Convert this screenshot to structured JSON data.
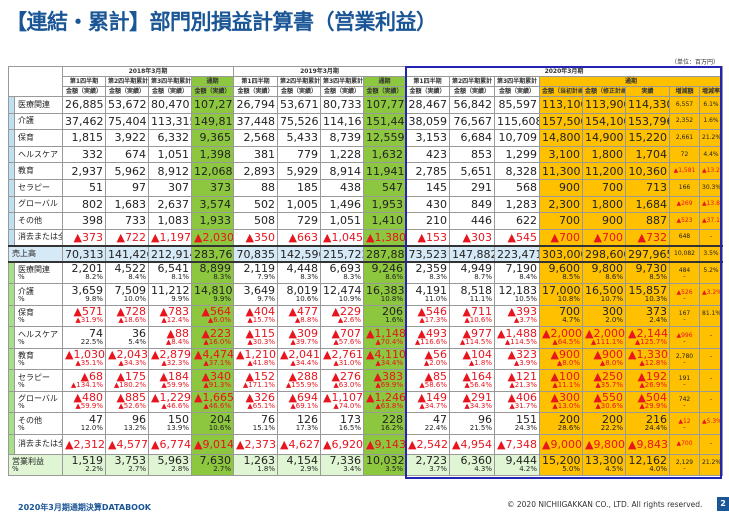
{
  "title": "【連結・累計】部門別損益計算書（営業利益）",
  "unit": "（単位：百万円）",
  "headers": {
    "years": [
      "2018年3月期",
      "2019年3月期",
      "2020年3月期"
    ],
    "periods": [
      "第1四半期",
      "第2四半期累計",
      "第3四半期累計",
      "通期"
    ],
    "amount": "金額（実績）",
    "plan_cols": [
      "金額（当初計画）",
      "金額（修正計画）",
      "実績",
      "増減額",
      "増減率"
    ]
  },
  "colors": {
    "title": "#1a5596",
    "full_year": "#8dc63f",
    "fy2020": "#ffc000",
    "negative": "#e8141e",
    "frame": "#2424b4"
  },
  "sales": {
    "rows": [
      {
        "label": "医療関連",
        "values": [
          "26,885",
          "53,672",
          "80,470",
          "107,272",
          "26,794",
          "53,671",
          "80,733",
          "107,773",
          "28,467",
          "56,842",
          "85,597",
          "113,100",
          "113,900",
          "114,330",
          "6,557",
          "6.1%"
        ]
      },
      {
        "label": "介護",
        "values": [
          "37,462",
          "75,404",
          "113,315",
          "149,811",
          "37,448",
          "75,526",
          "114,167",
          "151,444",
          "38,059",
          "76,567",
          "115,608",
          "157,500",
          "154,100",
          "153,796",
          "2,352",
          "1.6%"
        ]
      },
      {
        "label": "保育",
        "values": [
          "1,815",
          "3,922",
          "6,332",
          "9,365",
          "2,568",
          "5,433",
          "8,739",
          "12,559",
          "3,153",
          "6,684",
          "10,709",
          "14,800",
          "14,900",
          "15,220",
          "2,661",
          "21.2%"
        ]
      },
      {
        "label": "ヘルスケア",
        "values": [
          "332",
          "674",
          "1,051",
          "1,398",
          "381",
          "779",
          "1,228",
          "1,632",
          "423",
          "853",
          "1,299",
          "3,100",
          "1,800",
          "1,704",
          "72",
          "4.4%"
        ]
      },
      {
        "label": "教育",
        "values": [
          "2,937",
          "5,962",
          "8,912",
          "12,068",
          "2,893",
          "5,929",
          "8,914",
          "11,941",
          "2,785",
          "5,651",
          "8,328",
          "11,300",
          "11,200",
          "10,360",
          "▲1,581",
          "▲13.2%"
        ]
      },
      {
        "label": "セラピー",
        "values": [
          "51",
          "97",
          "307",
          "373",
          "88",
          "185",
          "438",
          "547",
          "145",
          "291",
          "568",
          "900",
          "700",
          "713",
          "166",
          "30.3%"
        ]
      },
      {
        "label": "グローバル",
        "values": [
          "802",
          "1,683",
          "2,637",
          "3,574",
          "502",
          "1,005",
          "1,496",
          "1,953",
          "430",
          "849",
          "1,283",
          "2,300",
          "1,800",
          "1,684",
          "▲269",
          "▲13.8%"
        ]
      },
      {
        "label": "その他",
        "values": [
          "398",
          "733",
          "1,083",
          "1,933",
          "508",
          "729",
          "1,051",
          "1,410",
          "210",
          "446",
          "622",
          "700",
          "900",
          "887",
          "▲523",
          "▲37.1%"
        ]
      },
      {
        "label": "消去または全社",
        "values": [
          "▲373",
          "▲722",
          "▲1,197",
          "▲2,030",
          "▲350",
          "▲663",
          "▲1,045",
          "▲1,380",
          "▲153",
          "▲303",
          "▲545",
          "▲700",
          "▲700",
          "▲732",
          "648",
          "-"
        ]
      },
      {
        "label": "売上高",
        "total": true,
        "values": [
          "70,313",
          "141,426",
          "212,914",
          "283,767",
          "70,835",
          "142,596",
          "215,723",
          "287,882",
          "73,523",
          "147,882",
          "223,471",
          "303,000",
          "298,600",
          "297,965",
          "10,082",
          "3.5%"
        ]
      }
    ]
  },
  "profit": {
    "rows": [
      {
        "label": "医療関連",
        "pct_label": "%",
        "values": [
          "2,201",
          "4,522",
          "6,541",
          "8,899",
          "2,119",
          "4,448",
          "6,693",
          "9,246",
          "2,359",
          "4,949",
          "7,190",
          "9,600",
          "9,800",
          "9,730",
          "484",
          "5.2%"
        ],
        "pcts": [
          "8.2%",
          "8.4%",
          "8.1%",
          "8.3%",
          "7.9%",
          "8.3%",
          "8.3%",
          "8.6%",
          "8.3%",
          "8.7%",
          "8.4%",
          "8.5%",
          "8.6%",
          "8.5%",
          "-",
          ""
        ]
      },
      {
        "label": "介護",
        "pct_label": "%",
        "values": [
          "3,659",
          "7,509",
          "11,212",
          "14,810",
          "3,649",
          "8,019",
          "12,474",
          "16,383",
          "4,191",
          "8,518",
          "12,183",
          "17,000",
          "16,500",
          "15,857",
          "▲526",
          "▲3.2%"
        ],
        "pcts": [
          "9.8%",
          "10.0%",
          "9.9%",
          "9.9%",
          "9.7%",
          "10.6%",
          "10.9%",
          "10.8%",
          "11.0%",
          "11.1%",
          "10.5%",
          "10.8%",
          "10.7%",
          "10.3%",
          "-",
          ""
        ]
      },
      {
        "label": "保育",
        "pct_label": "%",
        "values": [
          "▲571",
          "▲728",
          "▲783",
          "▲564",
          "▲404",
          "▲477",
          "▲229",
          "206",
          "▲546",
          "▲711",
          "▲393",
          "700",
          "300",
          "373",
          "167",
          "81.1%"
        ],
        "pcts": [
          "▲31.9%",
          "▲18.6%",
          "▲12.4%",
          "▲6.0%",
          "▲15.7%",
          "▲8.8%",
          "▲2.6%",
          "1.6%",
          "▲17.3%",
          "▲10.6%",
          "▲3.7%",
          "4.7%",
          "2.0%",
          "2.4%",
          "-",
          ""
        ]
      },
      {
        "label": "ヘルスケア",
        "pct_label": "%",
        "values": [
          "74",
          "36",
          "▲88",
          "▲223",
          "▲115",
          "▲309",
          "▲707",
          "▲1,148",
          "▲493",
          "▲977",
          "▲1,488",
          "▲2,000",
          "▲2,000",
          "▲2,144",
          "▲996",
          "-"
        ],
        "pcts": [
          "22.5%",
          "5.4%",
          "▲8.4%",
          "▲16.0%",
          "▲30.3%",
          "▲39.7%",
          "▲57.6%",
          "▲70.4%",
          "▲116.6%",
          "▲114.5%",
          "▲114.5%",
          "▲64.5%",
          "▲111.1%",
          "▲125.7%",
          "-",
          ""
        ]
      },
      {
        "label": "教育",
        "pct_label": "%",
        "values": [
          "▲1,030",
          "▲2,043",
          "▲2,879",
          "▲4,474",
          "▲1,210",
          "▲2,041",
          "▲2,761",
          "▲4,110",
          "▲56",
          "▲104",
          "▲323",
          "▲900",
          "▲900",
          "▲1,330",
          "2,780",
          "-"
        ],
        "pcts": [
          "▲35.1%",
          "▲34.3%",
          "▲32.3%",
          "▲37.1%",
          "▲41.8%",
          "▲34.4%",
          "▲31.0%",
          "▲34.4%",
          "▲2.0%",
          "▲1.8%",
          "▲3.9%",
          "▲8.0%",
          "▲8.0%",
          "▲12.8%",
          "-",
          ""
        ]
      },
      {
        "label": "セラピー",
        "pct_label": "%",
        "values": [
          "▲68",
          "▲175",
          "▲184",
          "▲340",
          "▲152",
          "▲288",
          "▲276",
          "▲383",
          "▲85",
          "▲164",
          "▲121",
          "▲100",
          "▲250",
          "▲192",
          "191",
          "-"
        ],
        "pcts": [
          "▲134.1%",
          "▲180.2%",
          "▲59.9%",
          "▲91.3%",
          "▲171.1%",
          "▲155.9%",
          "▲63.0%",
          "▲69.9%",
          "▲58.6%",
          "▲56.4%",
          "▲21.3%",
          "▲11.1%",
          "▲35.7%",
          "▲26.9%",
          "-",
          ""
        ]
      },
      {
        "label": "グローバル",
        "pct_label": "%",
        "values": [
          "▲480",
          "▲885",
          "▲1,229",
          "▲1,665",
          "▲326",
          "▲694",
          "▲1,107",
          "▲1,246",
          "▲149",
          "▲291",
          "▲406",
          "▲300",
          "▲550",
          "▲504",
          "742",
          "-"
        ],
        "pcts": [
          "▲59.9%",
          "▲52.6%",
          "▲46.6%",
          "▲46.6%",
          "▲65.1%",
          "▲69.1%",
          "▲74.0%",
          "▲63.8%",
          "▲34.7%",
          "▲34.3%",
          "▲31.7%",
          "▲13.0%",
          "▲30.6%",
          "▲29.9%",
          "-",
          ""
        ]
      },
      {
        "label": "その他",
        "pct_label": "%",
        "values": [
          "47",
          "96",
          "150",
          "204",
          "76",
          "126",
          "173",
          "228",
          "47",
          "96",
          "151",
          "200",
          "200",
          "216",
          "▲12",
          "▲5.3%"
        ],
        "pcts": [
          "12.0%",
          "13.2%",
          "13.9%",
          "10.6%",
          "15.1%",
          "17.3%",
          "16.5%",
          "16.2%",
          "22.4%",
          "21.5%",
          "24.3%",
          "28.6%",
          "22.2%",
          "24.4%",
          "-",
          ""
        ]
      },
      {
        "label": "消去または全社",
        "values": [
          "▲2,312",
          "▲4,577",
          "▲6,774",
          "▲9,014",
          "▲2,373",
          "▲4,627",
          "▲6,920",
          "▲9,143",
          "▲2,542",
          "▲4,954",
          "▲7,348",
          "▲9,000",
          "▲9,800",
          "▲9,843",
          "▲700",
          "-"
        ]
      },
      {
        "label": "営業利益",
        "pct_label": "%",
        "total": true,
        "values": [
          "1,519",
          "3,753",
          "5,963",
          "7,630",
          "1,263",
          "4,154",
          "7,336",
          "10,032",
          "2,723",
          "6,360",
          "9,444",
          "15,200",
          "13,300",
          "12,162",
          "2,129",
          "21.2%"
        ],
        "pcts": [
          "2.2%",
          "2.7%",
          "2.8%",
          "2.7%",
          "1.8%",
          "2.9%",
          "3.4%",
          "3.5%",
          "3.7%",
          "4.3%",
          "4.2%",
          "5.0%",
          "4.5%",
          "4.0%",
          "-",
          ""
        ]
      }
    ]
  },
  "footer": {
    "left": "2020年3月期通期決算DATABOOK",
    "copyright": "© 2020 NICHIIGAKKAN CO., LTD. All rights reserved.",
    "page": "2"
  }
}
